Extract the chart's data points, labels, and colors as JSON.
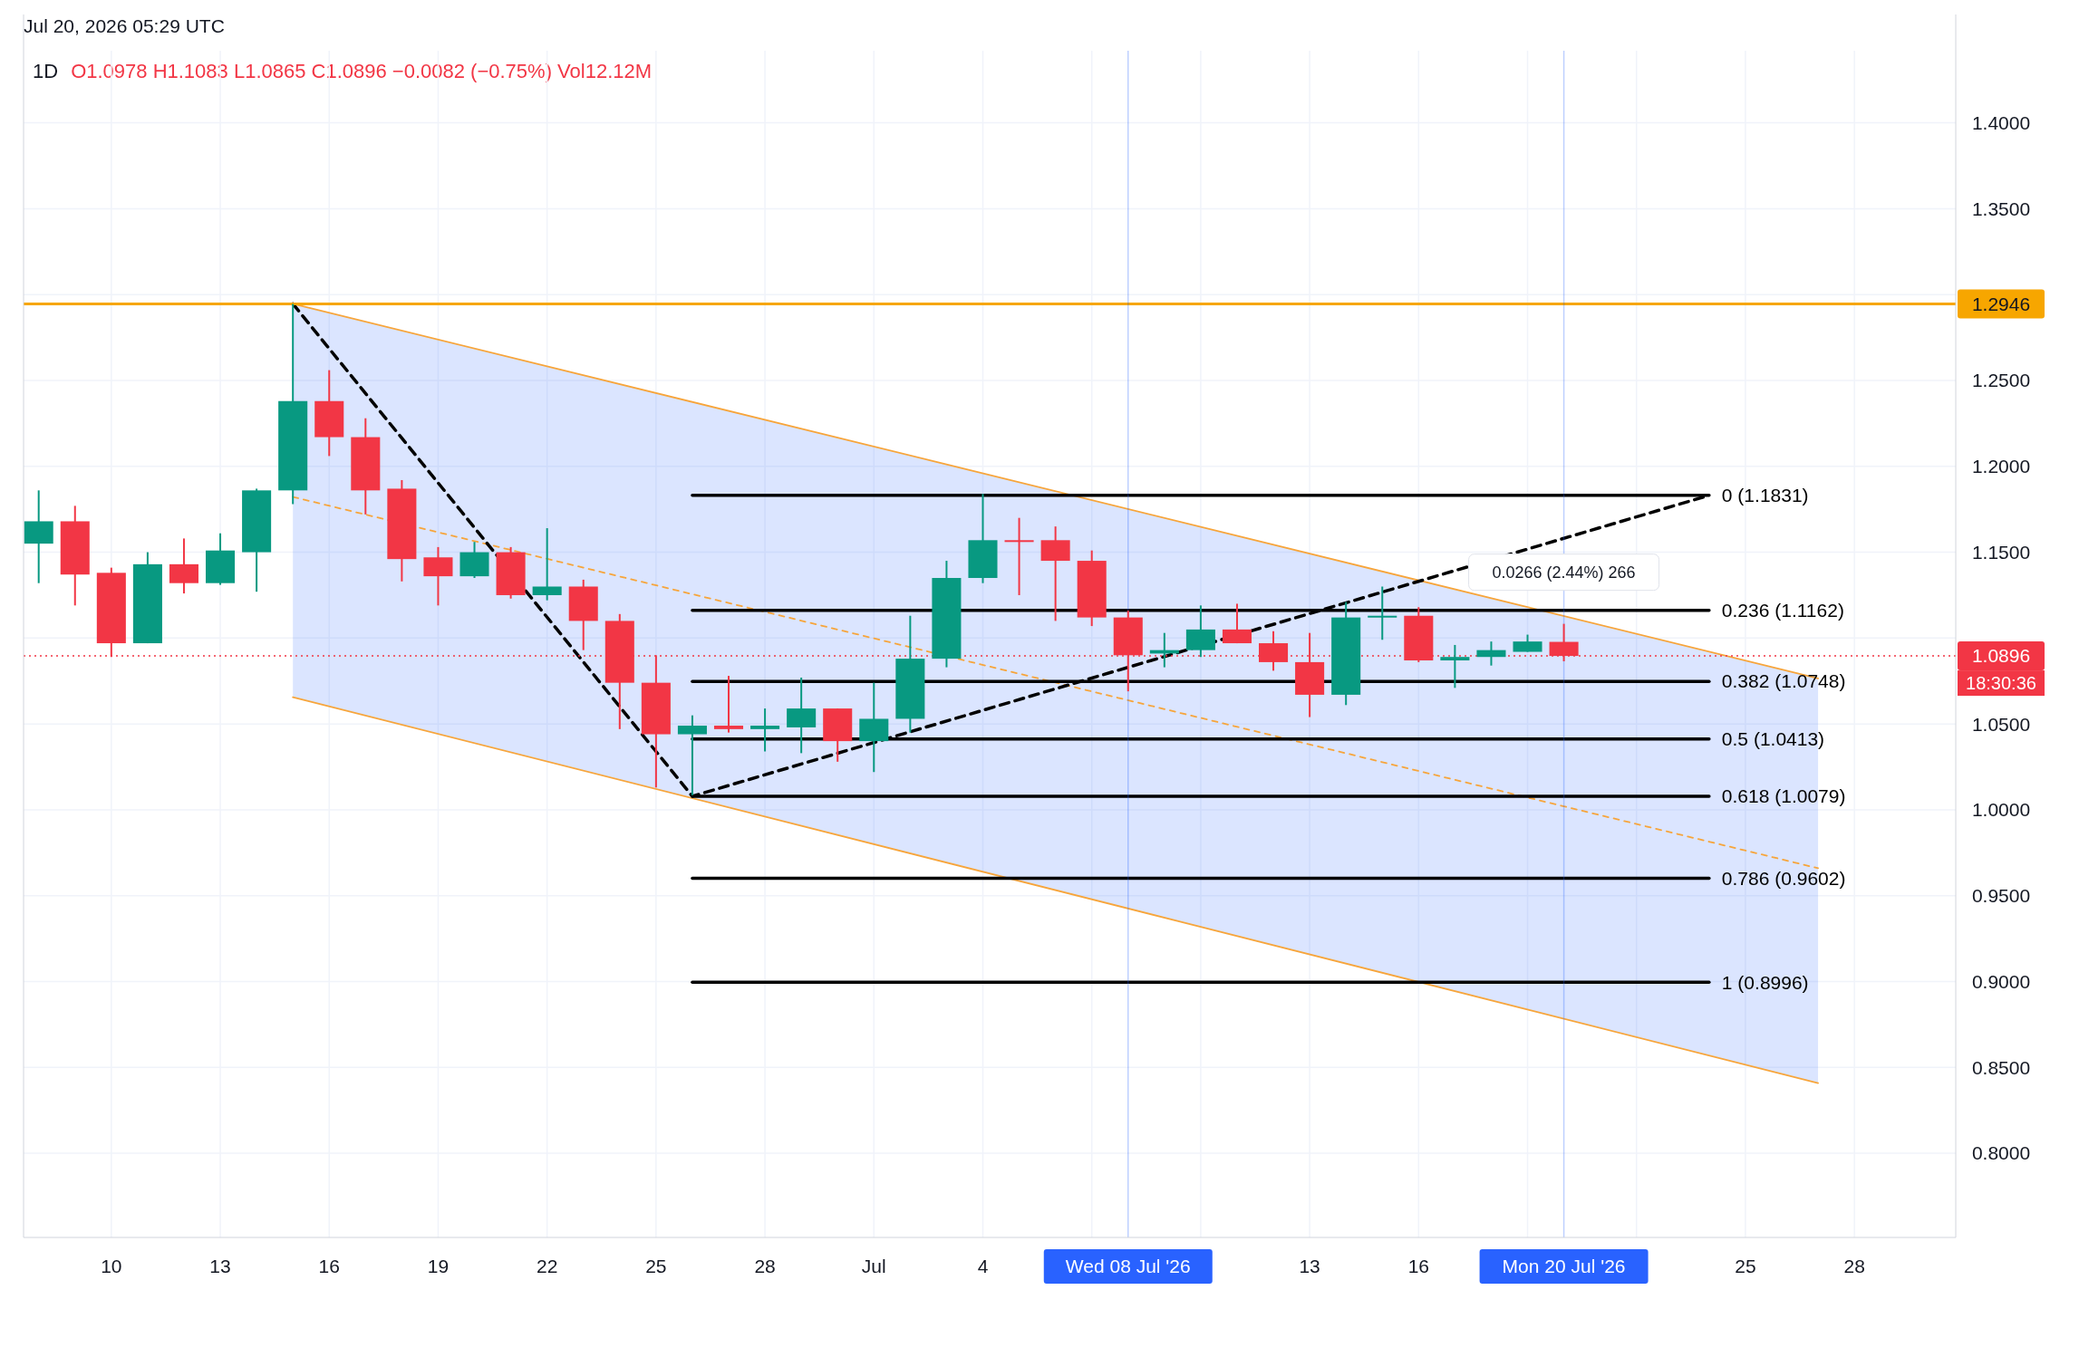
{
  "chart_data": {
    "type": "candlestick",
    "title": "1D",
    "annotations": [
      "Jul 20, 2026 05:29 UTC",
      "O1.0978 H1.1083 L1.0865 C1.0896 −0.0082 (−0.75%) Vol12.12M",
      "18:30:36",
      {
        "text": "0.0266 (2.44%) 266",
        "x": "2026-07-20",
        "y": 1.1162
      }
    ],
    "x": [
      "2026-06-08",
      "2026-06-09",
      "2026-06-10",
      "2026-06-11",
      "2026-06-12",
      "2026-06-13",
      "2026-06-14",
      "2026-06-15",
      "2026-06-16",
      "2026-06-17",
      "2026-06-18",
      "2026-06-19",
      "2026-06-20",
      "2026-06-21",
      "2026-06-22",
      "2026-06-23",
      "2026-06-24",
      "2026-06-25",
      "2026-06-26",
      "2026-06-27",
      "2026-06-28",
      "2026-06-29",
      "2026-06-30",
      "2026-07-01",
      "2026-07-02",
      "2026-07-03",
      "2026-07-04",
      "2026-07-05",
      "2026-07-06",
      "2026-07-07",
      "2026-07-08",
      "2026-07-09",
      "2026-07-10",
      "2026-07-11",
      "2026-07-12",
      "2026-07-13",
      "2026-07-14",
      "2026-07-15",
      "2026-07-16",
      "2026-07-17",
      "2026-07-18",
      "2026-07-19",
      "2026-07-20"
    ],
    "ohlc": [
      [
        1.155,
        1.186,
        1.132,
        1.168
      ],
      [
        1.168,
        1.177,
        1.119,
        1.137
      ],
      [
        1.138,
        1.141,
        1.089,
        1.097
      ],
      [
        1.097,
        1.15,
        1.097,
        1.143
      ],
      [
        1.143,
        1.158,
        1.126,
        1.132
      ],
      [
        1.132,
        1.161,
        1.131,
        1.151
      ],
      [
        1.15,
        1.187,
        1.127,
        1.186
      ],
      [
        1.186,
        1.2946,
        1.178,
        1.238
      ],
      [
        1.238,
        1.256,
        1.206,
        1.217
      ],
      [
        1.217,
        1.228,
        1.172,
        1.186
      ],
      [
        1.187,
        1.192,
        1.133,
        1.146
      ],
      [
        1.147,
        1.153,
        1.119,
        1.136
      ],
      [
        1.136,
        1.156,
        1.135,
        1.15
      ],
      [
        1.15,
        1.153,
        1.123,
        1.125
      ],
      [
        1.125,
        1.164,
        1.122,
        1.13
      ],
      [
        1.13,
        1.134,
        1.093,
        1.11
      ],
      [
        1.11,
        1.114,
        1.047,
        1.074
      ],
      [
        1.074,
        1.09,
        1.013,
        1.044
      ],
      [
        1.044,
        1.055,
        1.0085,
        1.049
      ],
      [
        1.049,
        1.078,
        1.045,
        1.047
      ],
      [
        1.047,
        1.059,
        1.034,
        1.049
      ],
      [
        1.048,
        1.077,
        1.033,
        1.059
      ],
      [
        1.059,
        1.059,
        1.028,
        1.04
      ],
      [
        1.04,
        1.074,
        1.022,
        1.053
      ],
      [
        1.053,
        1.113,
        1.045,
        1.088
      ],
      [
        1.088,
        1.145,
        1.083,
        1.135
      ],
      [
        1.135,
        1.184,
        1.132,
        1.157
      ],
      [
        1.157,
        1.17,
        1.125,
        1.157
      ],
      [
        1.157,
        1.165,
        1.11,
        1.145
      ],
      [
        1.145,
        1.151,
        1.107,
        1.112
      ],
      [
        1.112,
        1.116,
        1.069,
        1.09
      ],
      [
        1.091,
        1.103,
        1.083,
        1.093
      ],
      [
        1.093,
        1.119,
        1.089,
        1.105
      ],
      [
        1.105,
        1.12,
        1.097,
        1.097
      ],
      [
        1.097,
        1.104,
        1.081,
        1.086
      ],
      [
        1.086,
        1.103,
        1.054,
        1.067
      ],
      [
        1.067,
        1.121,
        1.061,
        1.112
      ],
      [
        1.112,
        1.13,
        1.099,
        1.113
      ],
      [
        1.113,
        1.118,
        1.086,
        1.087
      ],
      [
        1.087,
        1.096,
        1.071,
        1.089
      ],
      [
        1.089,
        1.098,
        1.084,
        1.093
      ],
      [
        1.092,
        1.102,
        1.092,
        1.098
      ],
      [
        1.0978,
        1.1083,
        1.0865,
        1.0896
      ]
    ],
    "colors": [
      "#089981",
      "#f23645",
      "#f23645",
      "#089981",
      "#f23645",
      "#089981",
      "#089981",
      "#089981",
      "#f23645",
      "#f23645",
      "#f23645",
      "#f23645",
      "#089981",
      "#f23645",
      "#089981",
      "#f23645",
      "#f23645",
      "#f23645",
      "#089981",
      "#f23645",
      "#089981",
      "#089981",
      "#f23645",
      "#089981",
      "#089981",
      "#089981",
      "#089981",
      "#f23645",
      "#f23645",
      "#f23645",
      "#f23645",
      "#089981",
      "#089981",
      "#f23645",
      "#f23645",
      "#f23645",
      "#089981",
      "#089981",
      "#f23645",
      "#089981",
      "#089981",
      "#089981",
      "#f23645"
    ],
    "series": [
      {
        "type": "line",
        "x": [
          "2026-06-15",
          "2026-07-27"
        ],
        "values": [
          1.1822,
          0.966
        ],
        "lower": [
          1.0656,
          0.8409
        ],
        "upper": [
          1.2946,
          1.0765
        ],
        "color": "#f7a53b",
        "line_style": "dashed"
      },
      {
        "type": "line",
        "x": [
          "2026-06-15",
          "2026-07-27"
        ],
        "values": [
          1.2946,
          1.0765
        ],
        "color": "#f7a53b"
      },
      {
        "type": "line",
        "x": [
          "2026-06-15",
          "2026-07-27"
        ],
        "values": [
          1.0656,
          0.8409
        ],
        "color": "#f7a53b"
      },
      {
        "type": "line",
        "x": [
          "2026-06-15",
          "2026-06-26",
          "2026-07-24"
        ],
        "values": [
          1.2946,
          1.0079,
          1.1831
        ],
        "color": "#000000",
        "line_style": "dashed"
      },
      {
        "type": "line",
        "name": "0 (1.1831)",
        "x": [
          "2026-06-26",
          "2026-07-24"
        ],
        "values": [
          1.1831,
          1.1831
        ],
        "color": "#000000"
      },
      {
        "type": "line",
        "name": "0.236 (1.1162)",
        "x": [
          "2026-06-26",
          "2026-07-24"
        ],
        "values": [
          1.1162,
          1.1162
        ],
        "color": "#000000"
      },
      {
        "type": "line",
        "name": "0.382 (1.0748)",
        "x": [
          "2026-06-26",
          "2026-07-24"
        ],
        "values": [
          1.0748,
          1.0748
        ],
        "color": "#000000"
      },
      {
        "type": "line",
        "name": "0.5 (1.0413)",
        "x": [
          "2026-06-26",
          "2026-07-24"
        ],
        "values": [
          1.0413,
          1.0413
        ],
        "color": "#000000"
      },
      {
        "type": "line",
        "name": "0.618 (1.0079)",
        "x": [
          "2026-06-26",
          "2026-07-24"
        ],
        "values": [
          1.0079,
          1.0079
        ],
        "color": "#000000"
      },
      {
        "type": "line",
        "name": "0.786 (0.9602)",
        "x": [
          "2026-06-26",
          "2026-07-24"
        ],
        "values": [
          0.9602,
          0.9602
        ],
        "color": "#000000"
      },
      {
        "type": "line",
        "name": "1 (0.8996)",
        "x": [
          "2026-06-26",
          "2026-07-24"
        ],
        "values": [
          0.8996,
          0.8996
        ],
        "color": "#000000"
      }
    ],
    "ref_lines": [
      {
        "axis": "y",
        "value": 1.2946,
        "label": "1.2946",
        "color": "#f7a600"
      },
      {
        "axis": "y",
        "value": 1.0896,
        "label": "1.0896",
        "color": "#f23645",
        "line_style": "dotted"
      },
      {
        "axis": "x",
        "value": "2026-07-08",
        "label": "Wed 08 Jul '26",
        "color": "#2962ff"
      },
      {
        "axis": "x",
        "value": "2026-07-20",
        "label": "Mon 20 Jul '26",
        "color": "#2962ff"
      }
    ],
    "xlim": [
      "2026-06-07T14:00",
      "2026-07-30T19:00"
    ],
    "xticks": [
      {
        "value": "2026-06-10",
        "label": "10"
      },
      {
        "value": "2026-06-13",
        "label": "13"
      },
      {
        "value": "2026-06-16",
        "label": "16"
      },
      {
        "value": "2026-06-19",
        "label": "19"
      },
      {
        "value": "2026-06-22",
        "label": "22"
      },
      {
        "value": "2026-06-25",
        "label": "25"
      },
      {
        "value": "2026-06-28",
        "label": "28"
      },
      {
        "value": "2026-07-01",
        "label": "Jul"
      },
      {
        "value": "2026-07-04",
        "label": "4"
      },
      {
        "value": "2026-07-07",
        "label": null
      },
      {
        "value": "2026-07-10",
        "label": null
      },
      {
        "value": "2026-07-13",
        "label": "13"
      },
      {
        "value": "2026-07-16",
        "label": "16"
      },
      {
        "value": "2026-07-19",
        "label": null
      },
      {
        "value": "2026-07-22",
        "label": null
      },
      {
        "value": "2026-07-25",
        "label": "25"
      },
      {
        "value": "2026-07-28",
        "label": "28"
      }
    ],
    "ylim": [
      0.751,
      1.442
    ],
    "yticks": [
      {
        "value": 0.8,
        "label": "0.8000"
      },
      {
        "value": 0.85,
        "label": "0.8500"
      },
      {
        "value": 0.9,
        "label": "0.9000"
      },
      {
        "value": 0.95,
        "label": "0.9500"
      },
      {
        "value": 1.0,
        "label": "1.0000"
      },
      {
        "value": 1.05,
        "label": "1.0500"
      },
      {
        "value": 1.1,
        "label": null
      },
      {
        "value": 1.15,
        "label": "1.1500"
      },
      {
        "value": 1.2,
        "label": "1.2000"
      },
      {
        "value": 1.25,
        "label": "1.2500"
      },
      {
        "value": 1.3,
        "label": null
      },
      {
        "value": 1.35,
        "label": "1.3500"
      },
      {
        "value": 1.4,
        "label": "1.4000"
      }
    ],
    "grid": true,
    "legend": false
  }
}
